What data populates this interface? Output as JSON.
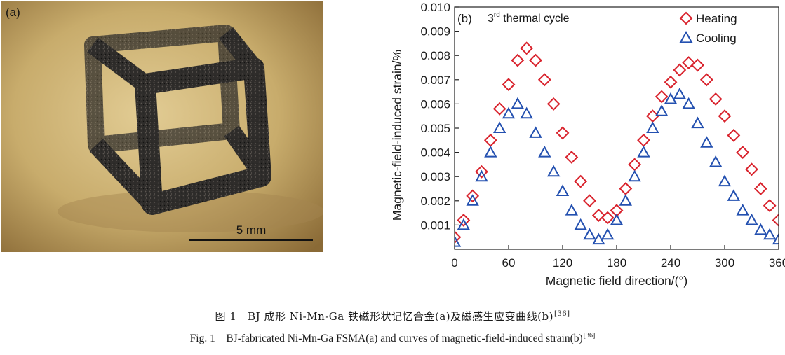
{
  "panel_a": {
    "label": "(a)",
    "scale_bar": "5 mm"
  },
  "chart_data": {
    "type": "scatter",
    "panel_label": "(b)",
    "annotation": {
      "prefix": "3",
      "sup": "rd",
      "suffix": " thermal cycle"
    },
    "xlabel": "Magnetic field direction/(°)",
    "ylabel": "Magnetic-field-induced strain/%",
    "xlim": [
      0,
      360
    ],
    "ylim": [
      0,
      0.01
    ],
    "xticks": [
      0,
      60,
      120,
      180,
      240,
      300,
      360
    ],
    "yticks": [
      0.001,
      0.002,
      0.003,
      0.004,
      0.005,
      0.006,
      0.007,
      0.008,
      0.009,
      0.01
    ],
    "ytick_labels": [
      "0.001",
      "0.002",
      "0.003",
      "0.004",
      "0.005",
      "0.006",
      "0.007",
      "0.008",
      "0.009",
      "0.010"
    ],
    "legend_position": "top-right",
    "series": [
      {
        "name": "Heating",
        "marker": "diamond",
        "color": "#d9232d",
        "x": [
          0,
          10,
          20,
          30,
          40,
          50,
          60,
          70,
          80,
          90,
          100,
          110,
          120,
          130,
          140,
          150,
          160,
          170,
          180,
          190,
          200,
          210,
          220,
          230,
          240,
          250,
          260,
          270,
          280,
          290,
          300,
          310,
          320,
          330,
          340,
          350,
          360
        ],
        "y": [
          0.0005,
          0.0012,
          0.0022,
          0.0032,
          0.0045,
          0.0058,
          0.0068,
          0.0078,
          0.0083,
          0.0078,
          0.007,
          0.006,
          0.0048,
          0.0038,
          0.0028,
          0.002,
          0.0014,
          0.0013,
          0.0016,
          0.0025,
          0.0035,
          0.0045,
          0.0055,
          0.0063,
          0.0069,
          0.0074,
          0.0077,
          0.0076,
          0.007,
          0.0062,
          0.0055,
          0.0047,
          0.004,
          0.0033,
          0.0025,
          0.0018,
          0.0012
        ]
      },
      {
        "name": "Cooling",
        "marker": "triangle",
        "color": "#2350b0",
        "x": [
          0,
          10,
          20,
          30,
          40,
          50,
          60,
          70,
          80,
          90,
          100,
          110,
          120,
          130,
          140,
          150,
          160,
          170,
          180,
          190,
          200,
          210,
          220,
          230,
          240,
          250,
          260,
          270,
          280,
          290,
          300,
          310,
          320,
          330,
          340,
          350,
          360
        ],
        "y": [
          0.0003,
          0.001,
          0.002,
          0.003,
          0.004,
          0.005,
          0.0056,
          0.006,
          0.0056,
          0.0048,
          0.004,
          0.0032,
          0.0024,
          0.0016,
          0.001,
          0.0006,
          0.0004,
          0.0006,
          0.0012,
          0.002,
          0.003,
          0.004,
          0.005,
          0.0057,
          0.0062,
          0.0064,
          0.006,
          0.0052,
          0.0044,
          0.0036,
          0.0028,
          0.0022,
          0.0016,
          0.0012,
          0.0008,
          0.0006,
          0.0004
        ]
      }
    ]
  },
  "caption": {
    "cn_label": "图 1",
    "cn_text": "BJ 成形 Ni-Mn-Ga 铁磁形状记忆合金(a)及磁感生应变曲线(b)",
    "en_label": "Fig. 1",
    "en_text": "BJ-fabricated Ni-Mn-Ga FSMA(a) and curves of magnetic-field-induced strain(b)",
    "ref": "[36]"
  }
}
